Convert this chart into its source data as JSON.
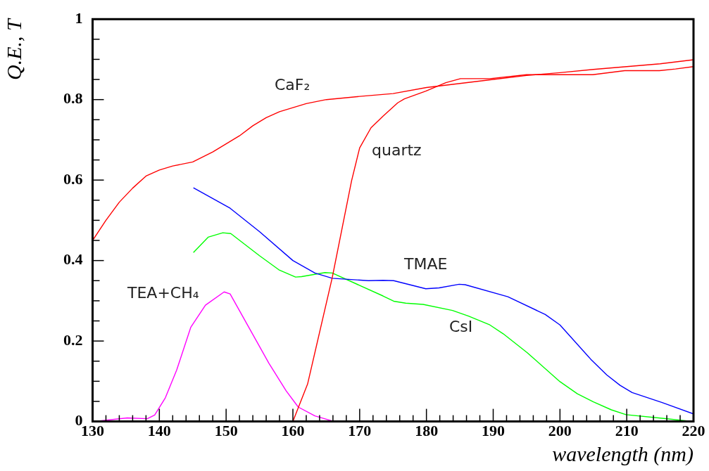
{
  "chart_data": {
    "type": "line",
    "xlabel": "wavelength (nm)",
    "ylabel": "Q.E., T",
    "marker": "none",
    "line_style": "solid",
    "xlim": [
      130,
      220
    ],
    "ylim": [
      0,
      1
    ],
    "xticks": [
      130,
      {
        "value": 132,
        "label": null
      },
      {
        "value": 134,
        "label": null
      },
      {
        "value": 136,
        "label": null
      },
      {
        "value": 138,
        "label": null
      },
      140,
      {
        "value": 142,
        "label": null
      },
      {
        "value": 144,
        "label": null
      },
      {
        "value": 146,
        "label": null
      },
      {
        "value": 148,
        "label": null
      },
      150,
      {
        "value": 152,
        "label": null
      },
      {
        "value": 154,
        "label": null
      },
      {
        "value": 156,
        "label": null
      },
      {
        "value": 158,
        "label": null
      },
      160,
      {
        "value": 162,
        "label": null
      },
      {
        "value": 164,
        "label": null
      },
      {
        "value": 166,
        "label": null
      },
      {
        "value": 168,
        "label": null
      },
      170,
      {
        "value": 172,
        "label": null
      },
      {
        "value": 174,
        "label": null
      },
      {
        "value": 176,
        "label": null
      },
      {
        "value": 178,
        "label": null
      },
      180,
      {
        "value": 182,
        "label": null
      },
      {
        "value": 184,
        "label": null
      },
      {
        "value": 186,
        "label": null
      },
      {
        "value": 188,
        "label": null
      },
      190,
      {
        "value": 192,
        "label": null
      },
      {
        "value": 194,
        "label": null
      },
      {
        "value": 196,
        "label": null
      },
      {
        "value": 198,
        "label": null
      },
      200,
      {
        "value": 202,
        "label": null
      },
      {
        "value": 204,
        "label": null
      },
      {
        "value": 206,
        "label": null
      },
      {
        "value": 208,
        "label": null
      },
      210,
      {
        "value": 212,
        "label": null
      },
      {
        "value": 214,
        "label": null
      },
      {
        "value": 216,
        "label": null
      },
      {
        "value": 218,
        "label": null
      },
      220
    ],
    "yticks": [
      0,
      {
        "value": 0.05,
        "label": null
      },
      {
        "value": 0.1,
        "label": null
      },
      {
        "value": 0.15,
        "label": null
      },
      0.2,
      {
        "value": 0.25,
        "label": null
      },
      {
        "value": 0.3,
        "label": null
      },
      {
        "value": 0.35,
        "label": null
      },
      0.4,
      {
        "value": 0.45,
        "label": null
      },
      {
        "value": 0.5,
        "label": null
      },
      {
        "value": 0.55,
        "label": null
      },
      0.6,
      {
        "value": 0.65,
        "label": null
      },
      {
        "value": 0.7,
        "label": null
      },
      {
        "value": 0.75,
        "label": null
      },
      0.8,
      {
        "value": 0.85,
        "label": null
      },
      {
        "value": 0.9,
        "label": null
      },
      {
        "value": 0.95,
        "label": null
      },
      1
    ],
    "series": [
      {
        "name": "CaF₂",
        "color": "#ff0000",
        "x": [
          130,
          132,
          134,
          136,
          138,
          140,
          142,
          145,
          148,
          150,
          152,
          154,
          156,
          158,
          160,
          162,
          165,
          170,
          175,
          180,
          185,
          190,
          195,
          200,
          205,
          210,
          215,
          220
        ],
        "values": [
          0.45,
          0.5,
          0.545,
          0.58,
          0.61,
          0.625,
          0.635,
          0.645,
          0.67,
          0.69,
          0.71,
          0.735,
          0.755,
          0.77,
          0.78,
          0.79,
          0.8,
          0.808,
          0.815,
          0.83,
          0.84,
          0.85,
          0.86,
          0.867,
          0.875,
          0.882,
          0.889,
          0.899
        ]
      },
      {
        "name": "quartz",
        "color": "#ff0000",
        "x": [
          160,
          162.2,
          165.9,
          168.8,
          170,
          171.7,
          173.5,
          175.7,
          176.7,
          179.9,
          182.9,
          185.1,
          189.5,
          195,
          204.9,
          209.7,
          214.9,
          217.3,
          220
        ],
        "values": [
          0,
          0.093,
          0.358,
          0.599,
          0.68,
          0.73,
          0.759,
          0.792,
          0.802,
          0.821,
          0.842,
          0.852,
          0.852,
          0.862,
          0.862,
          0.872,
          0.872,
          0.876,
          0.882
        ]
      },
      {
        "name": "TMAE",
        "color": "#0000ff",
        "x": [
          145.1,
          150.6,
          155,
          160,
          163.3,
          165.9,
          171.3,
          173.5,
          175.1,
          179.9,
          181.9,
          184.9,
          185.8,
          192.2,
          197.8,
          200,
          204.6,
          207,
          209,
          210.8,
          215.3,
          220
        ],
        "values": [
          0.581,
          0.53,
          0.472,
          0.4,
          0.369,
          0.356,
          0.35,
          0.351,
          0.35,
          0.33,
          0.332,
          0.341,
          0.34,
          0.31,
          0.266,
          0.24,
          0.155,
          0.116,
          0.09,
          0.072,
          0.047,
          0.019
        ]
      },
      {
        "name": "CsI",
        "color": "#00ff00",
        "x": [
          145.1,
          147.3,
          149.5,
          150.7,
          155,
          157.9,
          160.4,
          161.3,
          164.8,
          165.9,
          173.5,
          175.1,
          176.9,
          179.5,
          183.9,
          186.3,
          189.5,
          191.5,
          195.1,
          200,
          202.6,
          205,
          207.7,
          209.9,
          215.3,
          220
        ],
        "values": [
          0.42,
          0.458,
          0.469,
          0.467,
          0.412,
          0.377,
          0.359,
          0.36,
          0.37,
          0.369,
          0.312,
          0.299,
          0.294,
          0.291,
          0.276,
          0.262,
          0.24,
          0.218,
          0.171,
          0.099,
          0.069,
          0.049,
          0.029,
          0.017,
          0.008,
          0
        ]
      },
      {
        "name": "TEA+CH₄",
        "color": "#ff00ff",
        "x": [
          130.1,
          135.2,
          138.2,
          139.3,
          140.9,
          142.6,
          144.7,
          146.9,
          149.7,
          150.6,
          153.5,
          156.4,
          159,
          160.8,
          163.3,
          166.2
        ],
        "values": [
          0,
          0.009,
          0.007,
          0.016,
          0.059,
          0.128,
          0.234,
          0.289,
          0.322,
          0.317,
          0.231,
          0.145,
          0.076,
          0.036,
          0.014,
          0
        ]
      }
    ]
  }
}
